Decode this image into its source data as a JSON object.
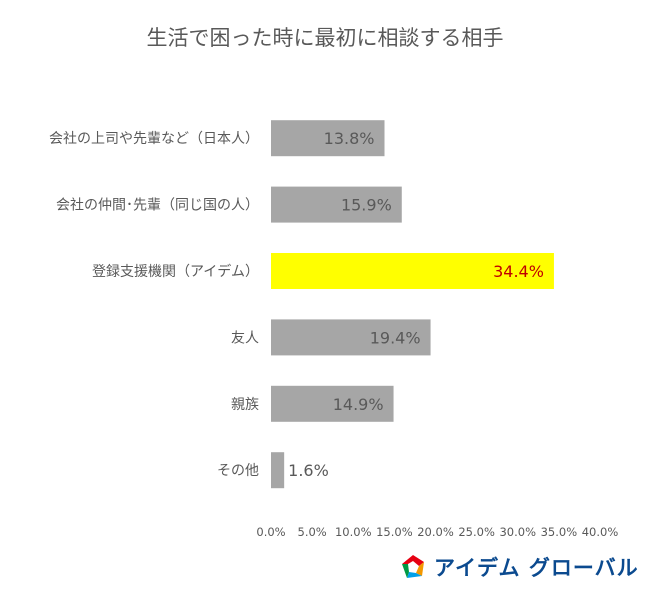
{
  "chart_data": {
    "type": "bar",
    "orientation": "horizontal",
    "title": "生活で困った時に最初に相談する相手",
    "categories": [
      "会社の上司や先輩など（日本人）",
      "会社の仲間･先輩（同じ国の人）",
      "登録支援機関（アイデム）",
      "友人",
      "親族",
      "その他"
    ],
    "values": [
      13.8,
      15.9,
      34.4,
      19.4,
      14.9,
      1.6
    ],
    "data_labels": [
      "13.8%",
      "15.9%",
      "34.4%",
      "19.4%",
      "14.9%",
      "1.6%"
    ],
    "xlim": [
      0,
      40
    ],
    "x_ticks": [
      "0.0%",
      "5.0%",
      "10.0%",
      "15.0%",
      "20.0%",
      "25.0%",
      "30.0%",
      "35.0%",
      "40.0%"
    ],
    "grid": false,
    "legend": "none",
    "highlight_index": 2,
    "colors": {
      "bar": "#a6a6a6",
      "highlight_bar": "#ffff00",
      "label": "#595959",
      "highlight_label": "#c00000"
    }
  },
  "logo": {
    "text": "アイデム グローバル",
    "colors": [
      "#e60012",
      "#f39800",
      "#00a0e9",
      "#009944"
    ]
  }
}
